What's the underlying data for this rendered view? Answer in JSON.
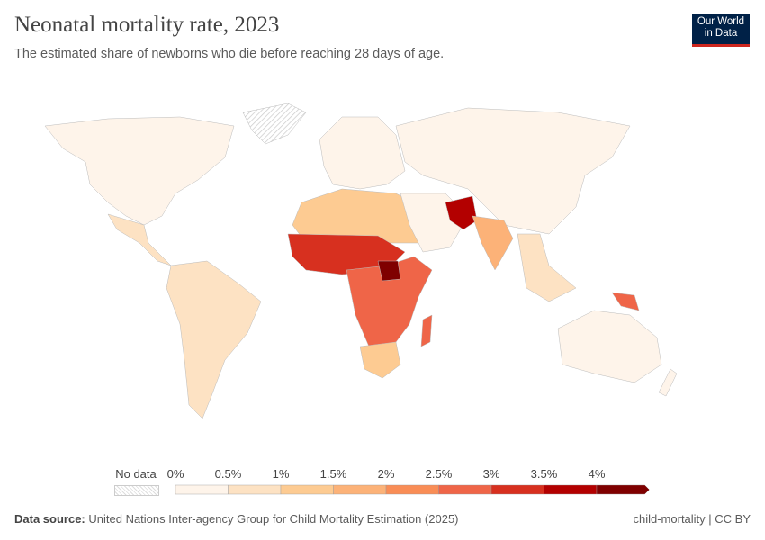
{
  "header": {
    "title": "Neonatal mortality rate, 2023",
    "subtitle": "The estimated share of newborns who die before reaching 28 days of age."
  },
  "logo": {
    "line1": "Our World",
    "line2": "in Data"
  },
  "legend": {
    "no_data_label": "No data",
    "ticks": [
      "0%",
      "0.5%",
      "1%",
      "1.5%",
      "2%",
      "2.5%",
      "3%",
      "3.5%",
      "4%"
    ],
    "bins": [
      {
        "from": 0,
        "to": 0.5,
        "color": "#fef4ea"
      },
      {
        "from": 0.5,
        "to": 1,
        "color": "#fde2c3"
      },
      {
        "from": 1,
        "to": 1.5,
        "color": "#fdcb92"
      },
      {
        "from": 1.5,
        "to": 2,
        "color": "#fcb278"
      },
      {
        "from": 2,
        "to": 2.5,
        "color": "#f98d56"
      },
      {
        "from": 2.5,
        "to": 3,
        "color": "#ef6548"
      },
      {
        "from": 3,
        "to": 3.5,
        "color": "#d7301f"
      },
      {
        "from": 3.5,
        "to": 4,
        "color": "#b30000"
      },
      {
        "from": 4,
        "to": null,
        "color": "#7f0000"
      }
    ]
  },
  "footer": {
    "source_label": "Data source:",
    "source_text": "United Nations Inter-agency Group for Child Mortality Estimation (2025)",
    "right": "child-mortality | CC BY"
  }
}
